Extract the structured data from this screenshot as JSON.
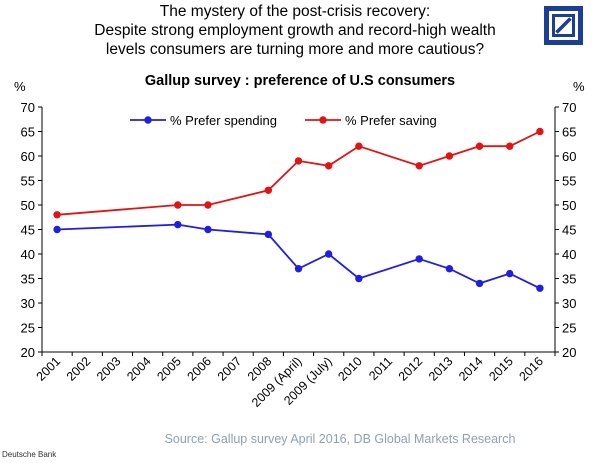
{
  "headline": [
    "The mystery of the post-crisis recovery:",
    "Despite strong employment growth and record-high wealth",
    "levels consumers are turning more and more cautious?"
  ],
  "source": "Source: Gallup survey April 2016, DB Global Markets Research",
  "footer": "Deutsche Bank",
  "chart_data": {
    "type": "line",
    "title": "Gallup survey : preference of U.S consumers",
    "ylabel_left": "%",
    "ylabel_right": "%",
    "ylim": [
      20,
      70
    ],
    "yticks": [
      20,
      25,
      30,
      35,
      40,
      45,
      50,
      55,
      60,
      65,
      70
    ],
    "categories": [
      "2001",
      "2002",
      "2003",
      "2004",
      "2005",
      "2006",
      "2007",
      "2008",
      "2009 (April)",
      "2009 (July)",
      "2010",
      "2011",
      "2012",
      "2013",
      "2014",
      "2015",
      "2016"
    ],
    "grid": false,
    "legend": "top",
    "series": [
      {
        "name": "% Prefer spending",
        "color": "#1f1fe0",
        "points": [
          {
            "x": "2001",
            "y": 45
          },
          {
            "x": "2005",
            "y": 46
          },
          {
            "x": "2006",
            "y": 45
          },
          {
            "x": "2008",
            "y": 44
          },
          {
            "x": "2009 (April)",
            "y": 37
          },
          {
            "x": "2009 (July)",
            "y": 40
          },
          {
            "x": "2010",
            "y": 35
          },
          {
            "x": "2012",
            "y": 39
          },
          {
            "x": "2013",
            "y": 37
          },
          {
            "x": "2014",
            "y": 34
          },
          {
            "x": "2015",
            "y": 36
          },
          {
            "x": "2016",
            "y": 33
          }
        ]
      },
      {
        "name": "% Prefer saving",
        "color": "#e01414",
        "points": [
          {
            "x": "2001",
            "y": 48
          },
          {
            "x": "2005",
            "y": 50
          },
          {
            "x": "2006",
            "y": 50
          },
          {
            "x": "2008",
            "y": 53
          },
          {
            "x": "2009 (April)",
            "y": 59
          },
          {
            "x": "2009 (July)",
            "y": 58
          },
          {
            "x": "2010",
            "y": 62
          },
          {
            "x": "2012",
            "y": 58
          },
          {
            "x": "2013",
            "y": 60
          },
          {
            "x": "2014",
            "y": 62
          },
          {
            "x": "2015",
            "y": 62
          },
          {
            "x": "2016",
            "y": 65
          }
        ]
      }
    ]
  }
}
